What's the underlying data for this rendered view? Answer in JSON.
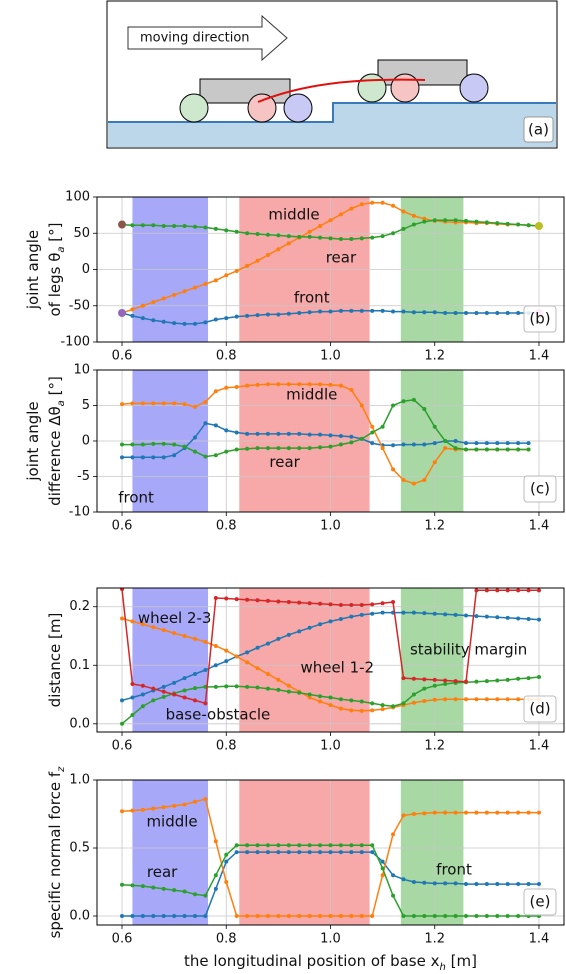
{
  "diagram": {
    "arrow_label": "moving direction",
    "panel_label": "(a)"
  },
  "chart_data": [
    {
      "type": "line",
      "panel_label": "(b)",
      "ylabel": [
        [
          "joint angle"
        ],
        [
          "of legs θ",
          "a",
          " [°]"
        ]
      ],
      "x": [
        0.6,
        0.62,
        0.64,
        0.66,
        0.68,
        0.7,
        0.72,
        0.74,
        0.76,
        0.78,
        0.8,
        0.82,
        0.84,
        0.86,
        0.88,
        0.9,
        0.92,
        0.94,
        0.96,
        0.98,
        1,
        1.02,
        1.04,
        1.06,
        1.08,
        1.1,
        1.12,
        1.14,
        1.16,
        1.18,
        1.2,
        1.22,
        1.24,
        1.26,
        1.28,
        1.3,
        1.32,
        1.34,
        1.36,
        1.38,
        1.4
      ],
      "series": [
        {
          "name": "front",
          "color": "#1f77b4",
          "values": [
            -60,
            -64,
            -67,
            -70,
            -72,
            -74,
            -75,
            -75,
            -73,
            -69,
            -67,
            -65,
            -64,
            -63,
            -62,
            -62,
            -61,
            -60,
            -59,
            -58,
            -58,
            -57,
            -57,
            -57,
            -57,
            -57,
            -58,
            -58,
            -59,
            -59,
            -59,
            -60,
            -60,
            -60,
            -60,
            -60,
            -60,
            -60,
            -60,
            -60,
            -60
          ]
        },
        {
          "name": "middle",
          "color": "#ff7f0e",
          "values": [
            -60,
            -55,
            -50,
            -45,
            -40,
            -35,
            -30,
            -25,
            -20,
            -15,
            -8,
            -2,
            5,
            12,
            20,
            28,
            36,
            44,
            52,
            60,
            68,
            76,
            84,
            90,
            92,
            92,
            88,
            80,
            74,
            70,
            67,
            66,
            65,
            65,
            64,
            64,
            63,
            62,
            62,
            61,
            60
          ]
        },
        {
          "name": "rear",
          "color": "#2ca02c",
          "values": [
            62,
            61,
            61,
            61,
            60,
            60,
            60,
            59,
            58,
            56,
            54,
            52,
            50,
            49,
            48,
            47,
            46,
            45,
            45,
            44,
            43,
            42,
            42,
            43,
            44,
            46,
            50,
            56,
            62,
            66,
            68,
            68,
            68,
            67,
            66,
            65,
            64,
            63,
            62,
            61,
            60
          ]
        }
      ],
      "markers": [
        {
          "x": 0.6,
          "y": 62,
          "color": "#8c564b"
        },
        {
          "x": 0.6,
          "y": -60,
          "color": "#9467bd"
        },
        {
          "x": 1.4,
          "y": 60,
          "color": "#bcbd22"
        },
        {
          "x": 1.4,
          "y": -60,
          "color": "#e377c2"
        }
      ],
      "spans": [
        {
          "x0": 0.62,
          "x1": 0.765,
          "color": "#5252f1"
        },
        {
          "x0": 0.825,
          "x1": 1.075,
          "color": "#ef5151"
        },
        {
          "x0": 1.135,
          "x1": 1.255,
          "color": "#52b149"
        }
      ],
      "xlim": [
        0.552,
        1.448
      ],
      "xticks": [
        0.6,
        0.8,
        {
          "value": 1,
          "label": "1.0"
        },
        1.2,
        1.4
      ],
      "ylim": [
        -100,
        100
      ],
      "yticks": [
        -100,
        -50,
        0,
        50,
        100
      ],
      "grid": true
    },
    {
      "type": "line",
      "panel_label": "(c)",
      "ylabel": [
        [
          "joint angle"
        ],
        [
          "difference Δθ",
          "a",
          " [°]"
        ]
      ],
      "x": [
        0.6,
        0.62,
        0.64,
        0.66,
        0.68,
        0.7,
        0.72,
        0.74,
        0.76,
        0.78,
        0.8,
        0.82,
        0.84,
        0.86,
        0.88,
        0.9,
        0.92,
        0.94,
        0.96,
        0.98,
        1,
        1.02,
        1.04,
        1.06,
        1.08,
        1.1,
        1.12,
        1.14,
        1.16,
        1.18,
        1.2,
        1.22,
        1.24,
        1.26,
        1.28,
        1.3,
        1.32,
        1.34,
        1.36,
        1.38,
        1.4
      ],
      "series": [
        {
          "name": "front",
          "color": "#1f77b4",
          "values": [
            -2.3,
            -2.3,
            -2.3,
            -2.3,
            -2.3,
            -2,
            -1,
            0.5,
            2.5,
            2.2,
            1.5,
            1.2,
            1,
            1,
            1,
            1,
            1,
            1,
            0.9,
            0.9,
            0.8,
            0.7,
            0.6,
            0.3,
            -0.3,
            -0.6,
            -0.6,
            -0.5,
            -0.5,
            -0.5,
            -0.3,
            0,
            0,
            -0.3,
            -0.3,
            -0.3,
            -0.3,
            -0.3,
            -0.3,
            -0.3,
            null
          ]
        },
        {
          "name": "middle",
          "color": "#ff7f0e",
          "values": [
            5.2,
            5.3,
            5.3,
            5.3,
            5.3,
            5.3,
            5.2,
            4.8,
            5.5,
            7,
            7.5,
            7.6,
            7.8,
            7.9,
            8,
            8,
            8,
            8,
            8,
            8,
            7.9,
            7.8,
            7.2,
            5,
            2,
            -1,
            -4,
            -5.5,
            -6,
            -5.5,
            -3,
            -1,
            -1.2,
            -1.2,
            -1.2,
            -1.2,
            -1.2,
            -1.2,
            -1.2,
            -1.2,
            null
          ]
        },
        {
          "name": "rear",
          "color": "#2ca02c",
          "values": [
            -0.5,
            -0.5,
            -0.5,
            -0.4,
            -0.4,
            -0.5,
            -0.8,
            -1.5,
            -2.2,
            -2,
            -1.5,
            -1.2,
            -1.1,
            -1,
            -1,
            -1,
            -1,
            -1,
            -1,
            -0.9,
            -0.8,
            -0.5,
            -0.2,
            0.3,
            1.2,
            2,
            5,
            5.6,
            5.8,
            4.5,
            2,
            0,
            -1,
            -1.2,
            -1.2,
            -1.2,
            -1.2,
            -1.2,
            -1.2,
            -1.2,
            null
          ]
        }
      ],
      "spans": [
        {
          "x0": 0.62,
          "x1": 0.765,
          "color": "#5252f1"
        },
        {
          "x0": 0.825,
          "x1": 1.075,
          "color": "#ef5151"
        },
        {
          "x0": 1.135,
          "x1": 1.255,
          "color": "#52b149"
        }
      ],
      "xlim": [
        0.552,
        1.448
      ],
      "xticks": [
        0.6,
        0.8,
        {
          "value": 1,
          "label": "1.0"
        },
        1.2,
        1.4
      ],
      "ylim": [
        -10,
        10
      ],
      "yticks": [
        -10,
        -5,
        0,
        5,
        10
      ],
      "grid": true
    },
    {
      "type": "line",
      "panel_label": "(d)",
      "ylabel": [
        [
          "distance [m]"
        ]
      ],
      "x": [
        0.6,
        0.62,
        0.64,
        0.66,
        0.68,
        0.7,
        0.72,
        0.74,
        0.76,
        0.78,
        0.8,
        0.82,
        0.84,
        0.86,
        0.88,
        0.9,
        0.92,
        0.94,
        0.96,
        0.98,
        1,
        1.02,
        1.04,
        1.06,
        1.08,
        1.1,
        1.12,
        1.14,
        1.16,
        1.18,
        1.2,
        1.22,
        1.24,
        1.26,
        1.28,
        1.3,
        1.32,
        1.34,
        1.36,
        1.38,
        1.4
      ],
      "series": [
        {
          "name": "wheel 1-2",
          "color": "#1f77b4",
          "values": [
            0.04,
            0.045,
            0.05,
            0.057,
            0.063,
            0.07,
            0.078,
            0.085,
            0.092,
            0.1,
            0.107,
            0.115,
            0.122,
            0.13,
            0.137,
            0.145,
            0.152,
            0.158,
            0.164,
            0.17,
            0.175,
            0.179,
            0.183,
            0.186,
            0.188,
            0.19,
            0.19,
            0.19,
            0.19,
            0.189,
            0.188,
            0.187,
            0.186,
            0.185,
            0.184,
            0.183,
            0.182,
            0.181,
            0.18,
            0.179,
            0.178
          ]
        },
        {
          "name": "wheel 2-3",
          "color": "#ff7f0e",
          "values": [
            0.18,
            0.175,
            0.17,
            0.165,
            0.16,
            0.155,
            0.15,
            0.145,
            0.14,
            0.133,
            0.125,
            0.115,
            0.105,
            0.095,
            0.085,
            0.075,
            0.065,
            0.055,
            0.045,
            0.038,
            0.032,
            0.026,
            0.023,
            0.022,
            0.023,
            0.025,
            0.028,
            0.032,
            0.036,
            0.039,
            0.041,
            0.042,
            0.042,
            0.042,
            0.042,
            0.042,
            0.042,
            0.042,
            0.042,
            0.042,
            0.042
          ]
        },
        {
          "name": "base-obstacle",
          "color": "#2ca02c",
          "values": [
            0,
            0.015,
            0.03,
            0.04,
            0.046,
            0.052,
            0.057,
            0.061,
            0.063,
            0.063,
            0.064,
            0.064,
            0.063,
            0.062,
            0.06,
            0.058,
            0.055,
            0.053,
            0.05,
            0.047,
            0.045,
            0.042,
            0.04,
            0.038,
            0.035,
            0.032,
            0.03,
            0.035,
            0.05,
            0.06,
            0.065,
            0.068,
            0.07,
            0.071,
            0.072,
            0.073,
            0.074,
            0.075,
            0.077,
            0.078,
            0.08
          ]
        },
        {
          "name": "stability margin",
          "color": "#d62728",
          "values": [
            0.23,
            0.068,
            0.065,
            0.06,
            0.055,
            0.05,
            0.045,
            0.04,
            0.035,
            0.215,
            0.214,
            0.213,
            0.212,
            0.211,
            0.21,
            0.209,
            0.208,
            0.207,
            0.206,
            0.205,
            0.204,
            0.203,
            0.203,
            0.203,
            0.204,
            0.206,
            0.208,
            0.078,
            0.077,
            0.076,
            0.075,
            0.074,
            0.073,
            0.072,
            0.228,
            0.228,
            0.228,
            0.228,
            0.228,
            0.228,
            0.228
          ]
        }
      ],
      "spans": [
        {
          "x0": 0.62,
          "x1": 0.765,
          "color": "#5252f1"
        },
        {
          "x0": 0.825,
          "x1": 1.075,
          "color": "#ef5151"
        },
        {
          "x0": 1.135,
          "x1": 1.255,
          "color": "#52b149"
        }
      ],
      "xlim": [
        0.552,
        1.448
      ],
      "xticks": [
        0.6,
        0.8,
        {
          "value": 1,
          "label": "1.0"
        },
        1.2,
        1.4
      ],
      "ylim": [
        -0.014,
        0.232
      ],
      "yticks": [
        {
          "value": 0,
          "label": "0.0"
        },
        0.1,
        0.2
      ],
      "grid": true
    },
    {
      "type": "line",
      "panel_label": "(e)",
      "ylabel": [
        [
          "specific normal force f",
          "z"
        ]
      ],
      "xlabel": [
        "the longitudinal position of base x",
        "h",
        " [m]"
      ],
      "x": [
        0.6,
        0.62,
        0.64,
        0.66,
        0.68,
        0.7,
        0.72,
        0.74,
        0.76,
        0.78,
        0.8,
        0.82,
        0.84,
        0.86,
        0.88,
        0.9,
        0.92,
        0.94,
        0.96,
        0.98,
        1,
        1.02,
        1.04,
        1.06,
        1.08,
        1.1,
        1.12,
        1.14,
        1.16,
        1.18,
        1.2,
        1.22,
        1.24,
        1.26,
        1.28,
        1.3,
        1.32,
        1.34,
        1.36,
        1.38,
        1.4
      ],
      "series": [
        {
          "name": "front",
          "color": "#1f77b4",
          "values": [
            0,
            0,
            0,
            0,
            0,
            0,
            0,
            0,
            0,
            0.2,
            0.4,
            0.47,
            0.47,
            0.47,
            0.47,
            0.47,
            0.47,
            0.47,
            0.47,
            0.47,
            0.47,
            0.47,
            0.47,
            0.47,
            0.47,
            0.4,
            0.3,
            0.27,
            0.25,
            0.245,
            0.24,
            0.24,
            0.24,
            0.235,
            0.235,
            0.235,
            0.235,
            0.235,
            0.235,
            0.235,
            0.235
          ]
        },
        {
          "name": "middle",
          "color": "#ff7f0e",
          "values": [
            0.77,
            0.775,
            0.78,
            0.79,
            0.8,
            0.81,
            0.82,
            0.84,
            0.86,
            0.55,
            0.25,
            0,
            0,
            0,
            0,
            0,
            0,
            0,
            0,
            0,
            0,
            0,
            0,
            0,
            0,
            0.3,
            0.6,
            0.74,
            0.75,
            0.755,
            0.76,
            0.76,
            0.76,
            0.76,
            0.76,
            0.76,
            0.76,
            0.76,
            0.76,
            0.76,
            0.76
          ]
        },
        {
          "name": "rear",
          "color": "#2ca02c",
          "values": [
            0.23,
            0.225,
            0.22,
            0.21,
            0.2,
            0.19,
            0.18,
            0.16,
            0.15,
            0.3,
            0.45,
            0.52,
            0.52,
            0.52,
            0.52,
            0.52,
            0.52,
            0.52,
            0.52,
            0.52,
            0.52,
            0.52,
            0.52,
            0.52,
            0.52,
            0.35,
            0.15,
            0,
            0,
            0,
            0,
            0,
            0,
            0,
            0,
            0,
            0,
            0,
            0,
            0,
            0
          ]
        }
      ],
      "spans": [
        {
          "x0": 0.62,
          "x1": 0.765,
          "color": "#5252f1"
        },
        {
          "x0": 0.825,
          "x1": 1.075,
          "color": "#ef5151"
        },
        {
          "x0": 1.135,
          "x1": 1.255,
          "color": "#52b149"
        }
      ],
      "xlim": [
        0.552,
        1.448
      ],
      "xticks": [
        0.6,
        0.8,
        {
          "value": 1,
          "label": "1.0"
        },
        1.2,
        1.4
      ],
      "ylim": [
        -0.066,
        1.0
      ],
      "yticks": [
        {
          "value": 0,
          "label": "0.0"
        },
        0.5,
        {
          "value": 1,
          "label": "1.0"
        }
      ],
      "grid": true
    }
  ]
}
